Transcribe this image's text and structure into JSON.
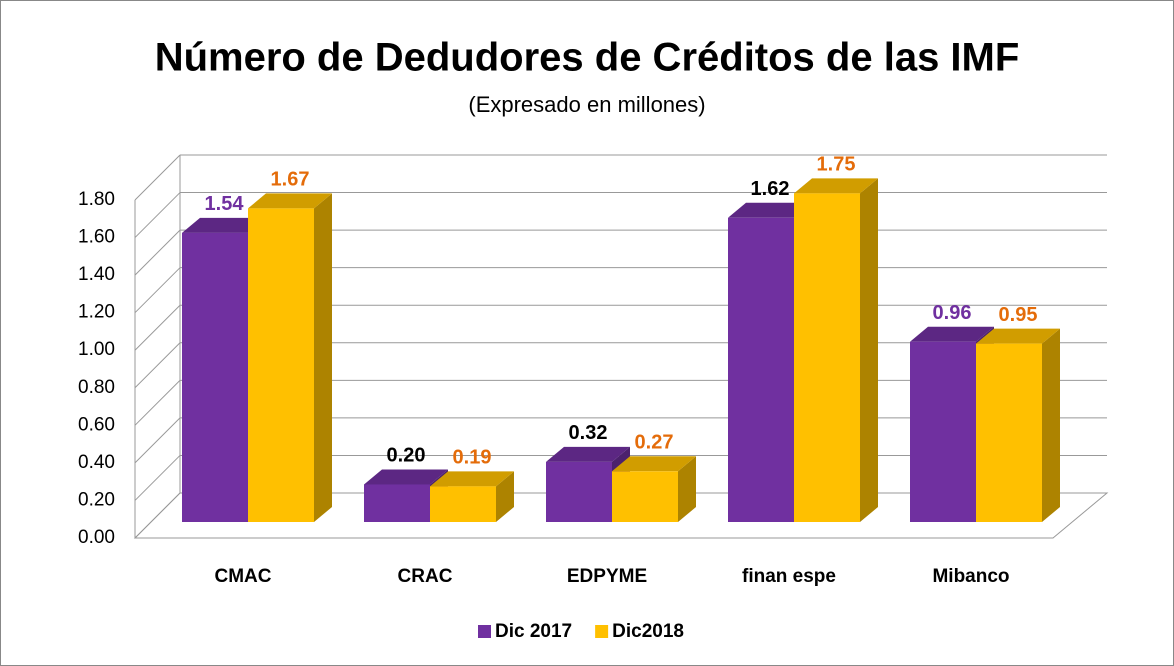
{
  "chart_data": {
    "type": "bar3d",
    "title": "Número de Dedudores de Créditos de las IMF",
    "subtitle": "(Expresado en millones)",
    "categories": [
      "CMAC",
      "CRAC",
      "EDPYME",
      "finan espe",
      "Mibanco"
    ],
    "series": [
      {
        "name": "Dic 2017",
        "color": "#7030a0",
        "values": [
          1.54,
          0.2,
          0.32,
          1.62,
          0.96
        ],
        "value_labels": [
          "1.54",
          "0.20",
          "0.32",
          "1.62",
          "0.96"
        ],
        "label_colors": [
          "#7030a0",
          "#000000",
          "#000000",
          "#000000",
          "#7030a0"
        ]
      },
      {
        "name": "Dic2018",
        "color": "#ffc000",
        "values": [
          1.67,
          0.19,
          0.27,
          1.75,
          0.95
        ],
        "value_labels": [
          "1.67",
          "0.19",
          "0.27",
          "1.75",
          "0.95"
        ],
        "label_colors": [
          "#e46c0a",
          "#e46c0a",
          "#e46c0a",
          "#e46c0a",
          "#e46c0a"
        ]
      }
    ],
    "ylim": [
      0,
      1.8
    ],
    "yticks": [
      {
        "value": 0,
        "label": "0.00"
      },
      {
        "value": 0.2,
        "label": "0.20"
      },
      {
        "value": 0.4,
        "label": "0.40"
      },
      {
        "value": 0.6,
        "label": "0.60"
      },
      {
        "value": 0.8,
        "label": "0.80"
      },
      {
        "value": 1.0,
        "label": "1.00"
      },
      {
        "value": 1.2,
        "label": "1.20"
      },
      {
        "value": 1.4,
        "label": "1.40"
      },
      {
        "value": 1.6,
        "label": "1.60"
      },
      {
        "value": 1.8,
        "label": "1.80"
      }
    ],
    "grid": true,
    "legend": "bottom"
  }
}
